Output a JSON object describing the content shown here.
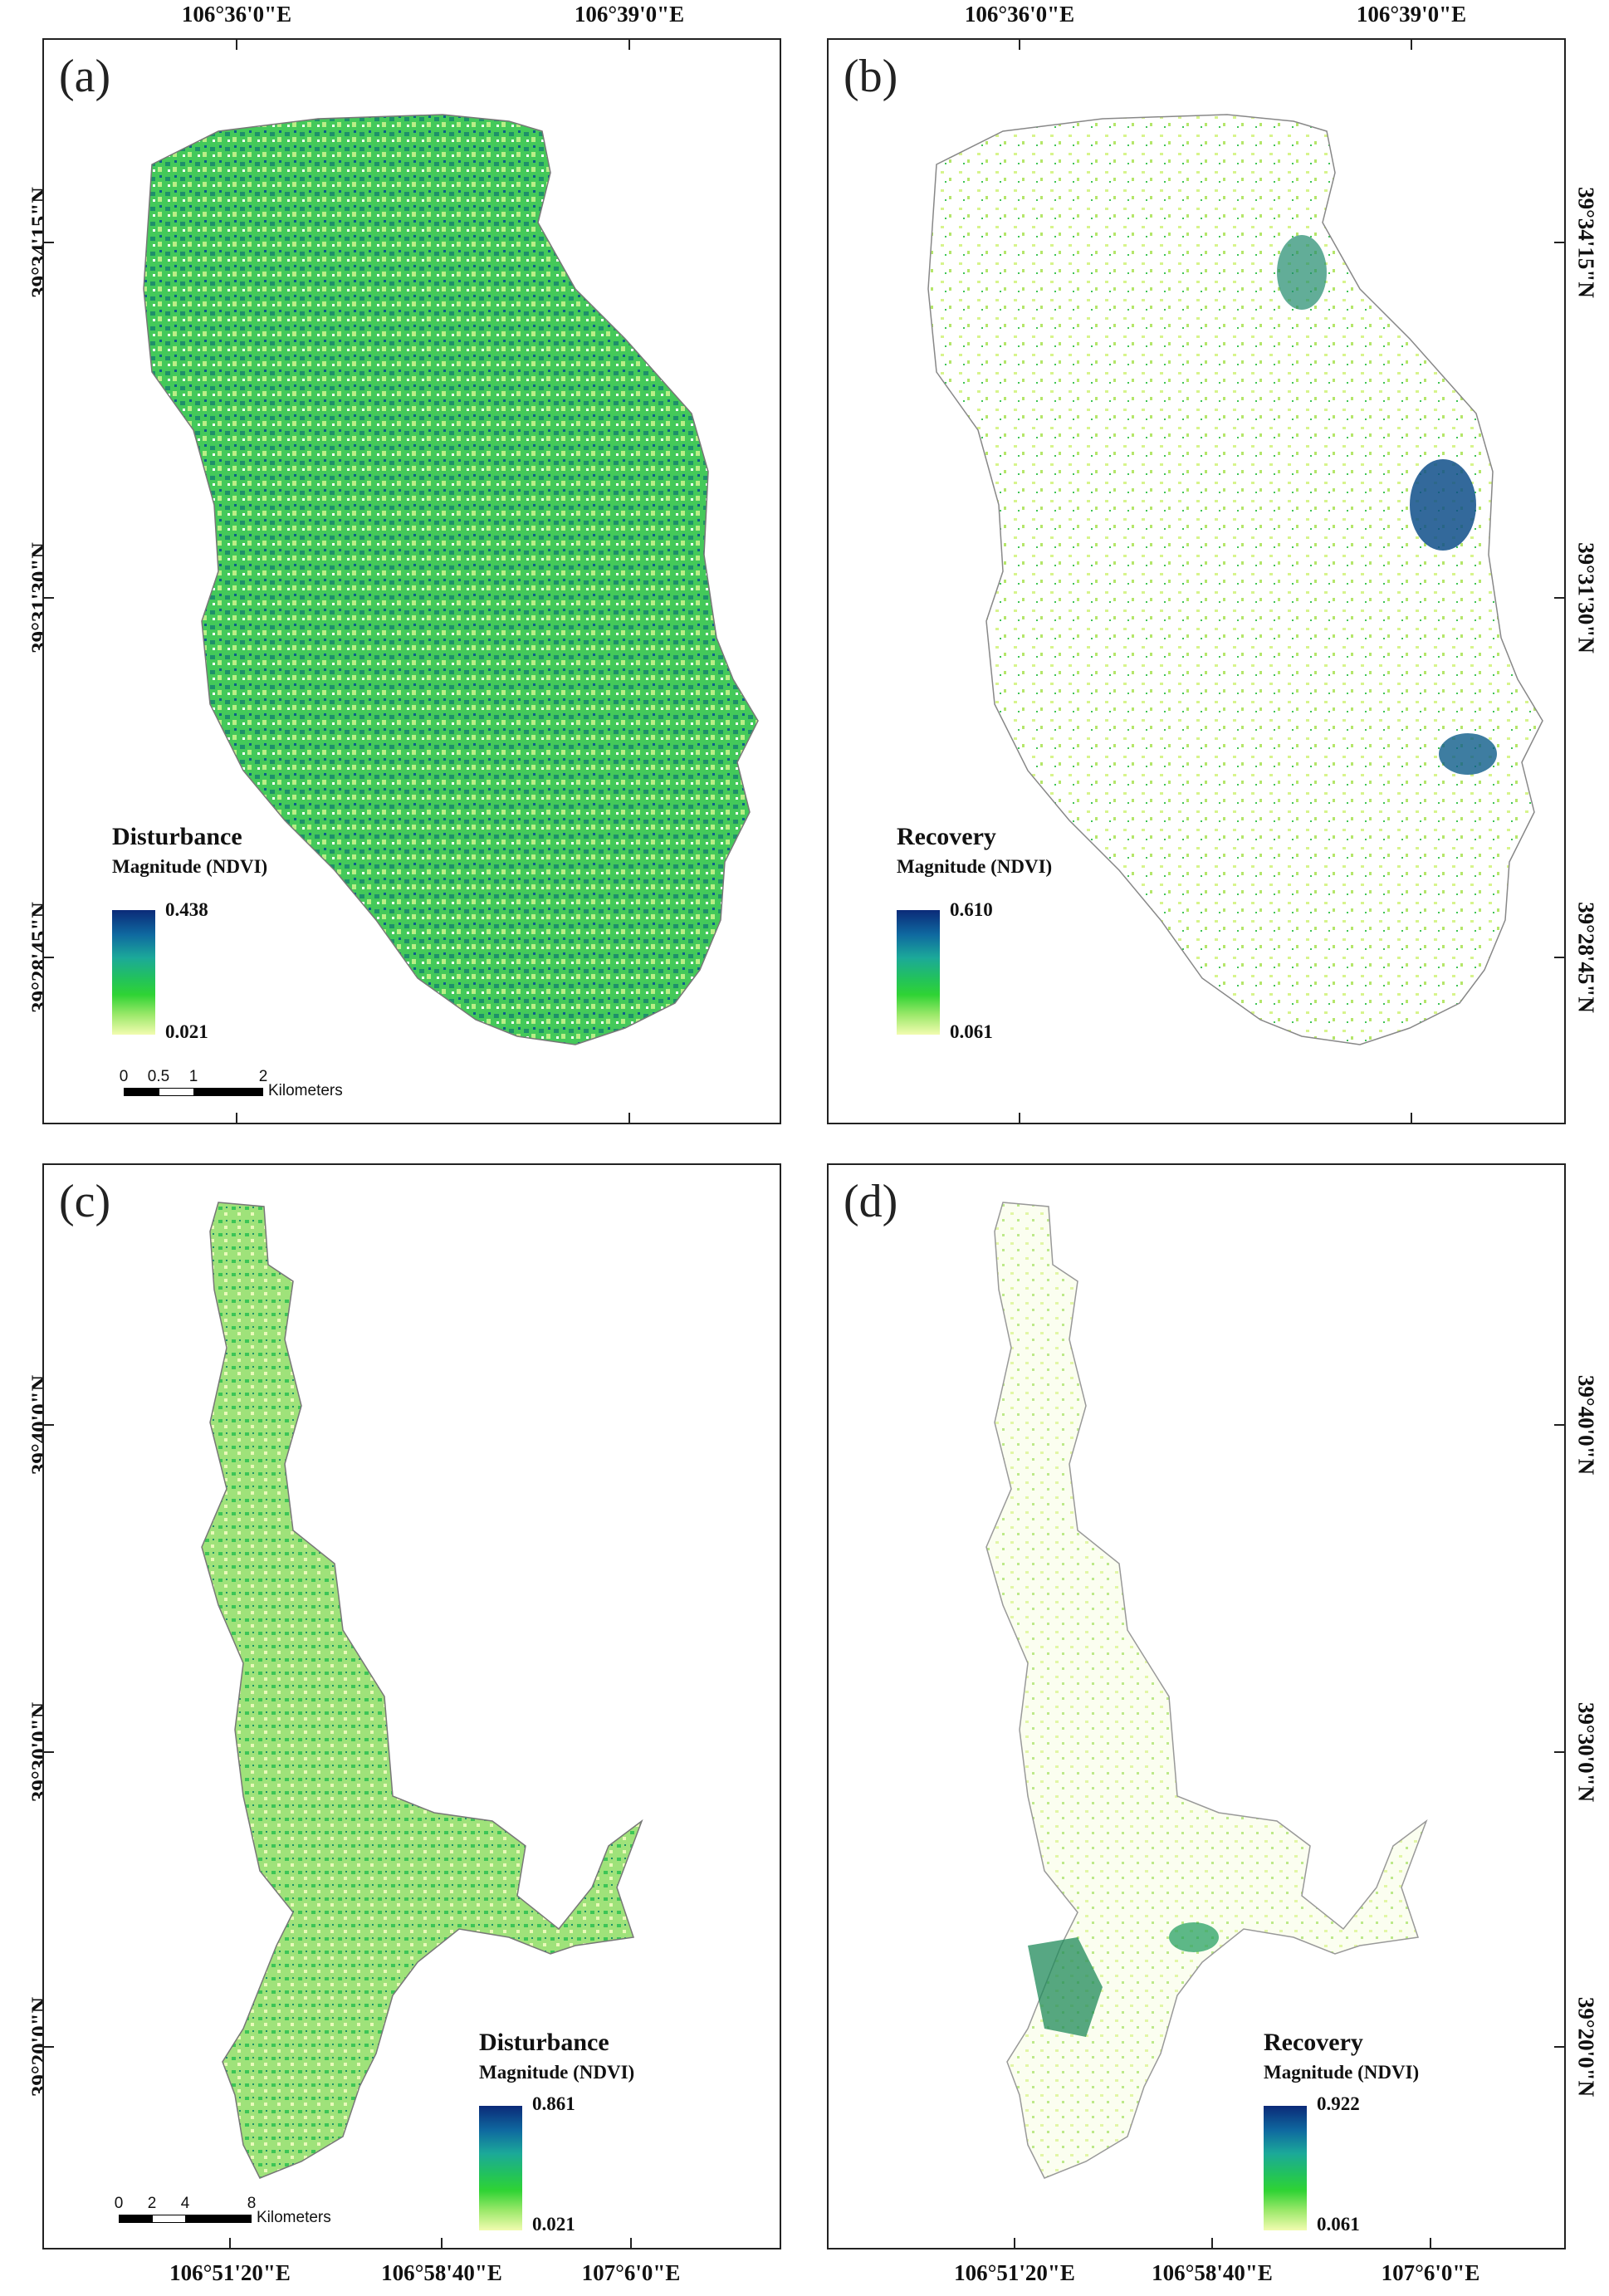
{
  "panels": {
    "a": {
      "label": "(a)",
      "lon_labels_top": [
        "106°36'0\"E",
        "106°39'0\"E"
      ],
      "lat_labels_left": [
        "39°34'15\"N",
        "39°31'30\"N",
        "39°28'45\"N"
      ],
      "legend": {
        "title": "Disturbance",
        "subtitle": "Magnitude (NDVI)",
        "max": "0.438",
        "min": "0.021"
      },
      "scale": {
        "ticks": [
          "0",
          "0.5",
          "1",
          "2"
        ],
        "unit": "Kilometers"
      }
    },
    "b": {
      "label": "(b)",
      "lon_labels_top": [
        "106°36'0\"E",
        "106°39'0\"E"
      ],
      "lat_labels_right": [
        "39°34'15\"N",
        "39°31'30\"N",
        "39°28'45\"N"
      ],
      "legend": {
        "title": "Recovery",
        "subtitle": "Magnitude (NDVI)",
        "max": "0.610",
        "min": "0.061"
      }
    },
    "c": {
      "label": "(c)",
      "lon_labels_bottom": [
        "106°51'20\"E",
        "106°58'40\"E",
        "107°6'0\"E"
      ],
      "lat_labels_left": [
        "39°40'0\"N",
        "39°30'0\"N",
        "39°20'0\"N"
      ],
      "legend": {
        "title": "Disturbance",
        "subtitle": "Magnitude (NDVI)",
        "max": "0.861",
        "min": "0.021"
      },
      "scale": {
        "ticks": [
          "0",
          "2",
          "4",
          "8"
        ],
        "unit": "Kilometers"
      }
    },
    "d": {
      "label": "(d)",
      "lon_labels_bottom": [
        "106°51'20\"E",
        "106°58'40\"E",
        "107°6'0\"E"
      ],
      "lat_labels_right": [
        "39°40'0\"N",
        "39°30'0\"N",
        "39°20'0\"N"
      ],
      "legend": {
        "title": "Recovery",
        "subtitle": "Magnitude (NDVI)",
        "max": "0.922",
        "min": "0.061"
      }
    }
  },
  "colors": {
    "ramp_high": "#0b2a78",
    "ramp_mid": "#2fd334",
    "ramp_low": "#f2fcb0",
    "frame": "#222222"
  }
}
